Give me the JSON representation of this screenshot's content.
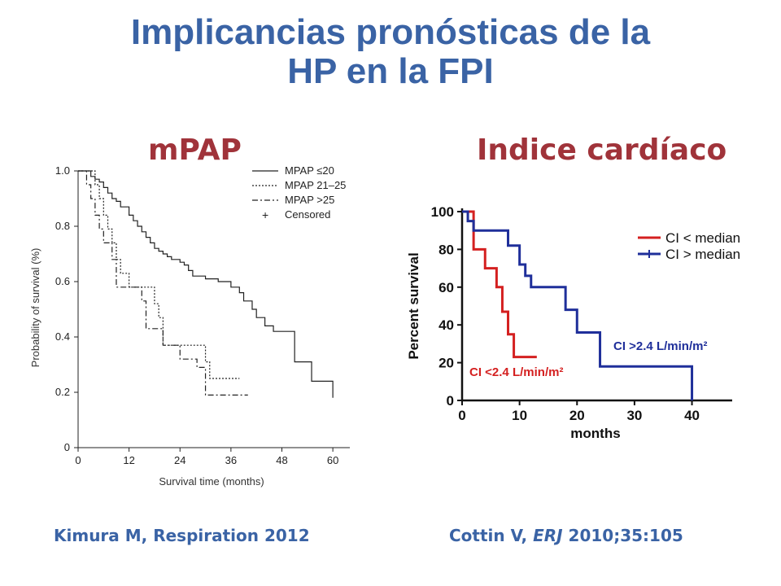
{
  "title_line1": "Implicancias pronósticas de la",
  "title_line2": "HP en la FPI",
  "left_heading": "mPAP",
  "right_heading": "Indice cardíaco",
  "citation_left": "Kimura M, Respiration  2012",
  "citation_right": {
    "author": "Cottin V, ",
    "journal": "ERJ",
    "rest": " 2010;35:105"
  },
  "colors": {
    "title": "#3a63a5",
    "heading": "#a0333a",
    "series_red": "#d42020",
    "series_blue": "#1f2f9a"
  },
  "chart_data": [
    {
      "type": "line",
      "xlabel": "Survival time (months)",
      "ylabel": "Probability of survival (%)",
      "xlim": [
        0,
        64
      ],
      "ylim": [
        0,
        1.0
      ],
      "xticks": [
        0,
        12,
        24,
        36,
        48,
        60
      ],
      "yticks": [
        0,
        0.2,
        0.4,
        0.6,
        0.8,
        1.0
      ],
      "ytick_labels": [
        "0",
        "0.2",
        "0.4",
        "0.6",
        "0.8",
        "1.0"
      ],
      "legend": {
        "position": "top-right",
        "censored_label": "Censored"
      },
      "series": [
        {
          "name": "MPAP ≤20",
          "style": "solid",
          "x": [
            0,
            3,
            4,
            5,
            6,
            7,
            8,
            9,
            10,
            12,
            13,
            14,
            15,
            16,
            17,
            18,
            19,
            20,
            21,
            22,
            24,
            25,
            26,
            27,
            30,
            33,
            36,
            38,
            39,
            41,
            42,
            44,
            46,
            50,
            51,
            55,
            60
          ],
          "y": [
            1.0,
            0.98,
            0.97,
            0.96,
            0.94,
            0.92,
            0.9,
            0.89,
            0.87,
            0.84,
            0.82,
            0.8,
            0.78,
            0.76,
            0.74,
            0.72,
            0.71,
            0.7,
            0.69,
            0.68,
            0.67,
            0.66,
            0.64,
            0.62,
            0.61,
            0.6,
            0.58,
            0.56,
            0.53,
            0.5,
            0.47,
            0.44,
            0.42,
            0.42,
            0.31,
            0.24,
            0.18
          ]
        },
        {
          "name": "MPAP 21–25",
          "style": "dashed",
          "x": [
            0,
            4,
            5,
            6,
            7,
            8,
            9,
            10,
            12,
            17,
            18,
            19,
            20,
            22,
            28,
            30,
            31,
            38
          ],
          "y": [
            1.0,
            0.95,
            0.9,
            0.84,
            0.79,
            0.74,
            0.68,
            0.63,
            0.58,
            0.58,
            0.52,
            0.47,
            0.37,
            0.37,
            0.37,
            0.31,
            0.25,
            0.25
          ]
        },
        {
          "name": "MPAP >25",
          "style": "dashdot",
          "x": [
            0,
            2,
            3,
            4,
            5,
            6,
            8,
            9,
            14,
            15,
            16,
            18,
            20,
            22,
            24,
            28,
            30,
            38,
            40
          ],
          "y": [
            1.0,
            0.95,
            0.9,
            0.84,
            0.79,
            0.74,
            0.68,
            0.58,
            0.58,
            0.53,
            0.43,
            0.43,
            0.37,
            0.37,
            0.32,
            0.29,
            0.19,
            0.19,
            0.19
          ]
        }
      ]
    },
    {
      "type": "line",
      "xlabel": "months",
      "ylabel": "Percent survival",
      "xlim": [
        0,
        47
      ],
      "ylim": [
        0,
        100
      ],
      "xticks": [
        0,
        10,
        20,
        30,
        40
      ],
      "yticks": [
        0,
        20,
        40,
        60,
        80,
        100
      ],
      "legend": {
        "position": "top-right"
      },
      "series": [
        {
          "name": "CI < median",
          "color": "#d42020",
          "x": [
            0,
            2,
            4,
            6,
            7,
            8,
            9,
            13
          ],
          "y": [
            100,
            80,
            70,
            60,
            47,
            35,
            23,
            23
          ]
        },
        {
          "name": "CI > median",
          "color": "#1f2f9a",
          "x": [
            0,
            1,
            2,
            8,
            10,
            11,
            12,
            18,
            20,
            24,
            40,
            40
          ],
          "y": [
            100,
            95,
            90,
            82,
            72,
            66,
            60,
            48,
            36,
            18,
            18,
            0
          ]
        }
      ],
      "annotations": [
        "CI >2.4 L/min/m²",
        "CI <2.4 L/min/m²"
      ]
    }
  ]
}
